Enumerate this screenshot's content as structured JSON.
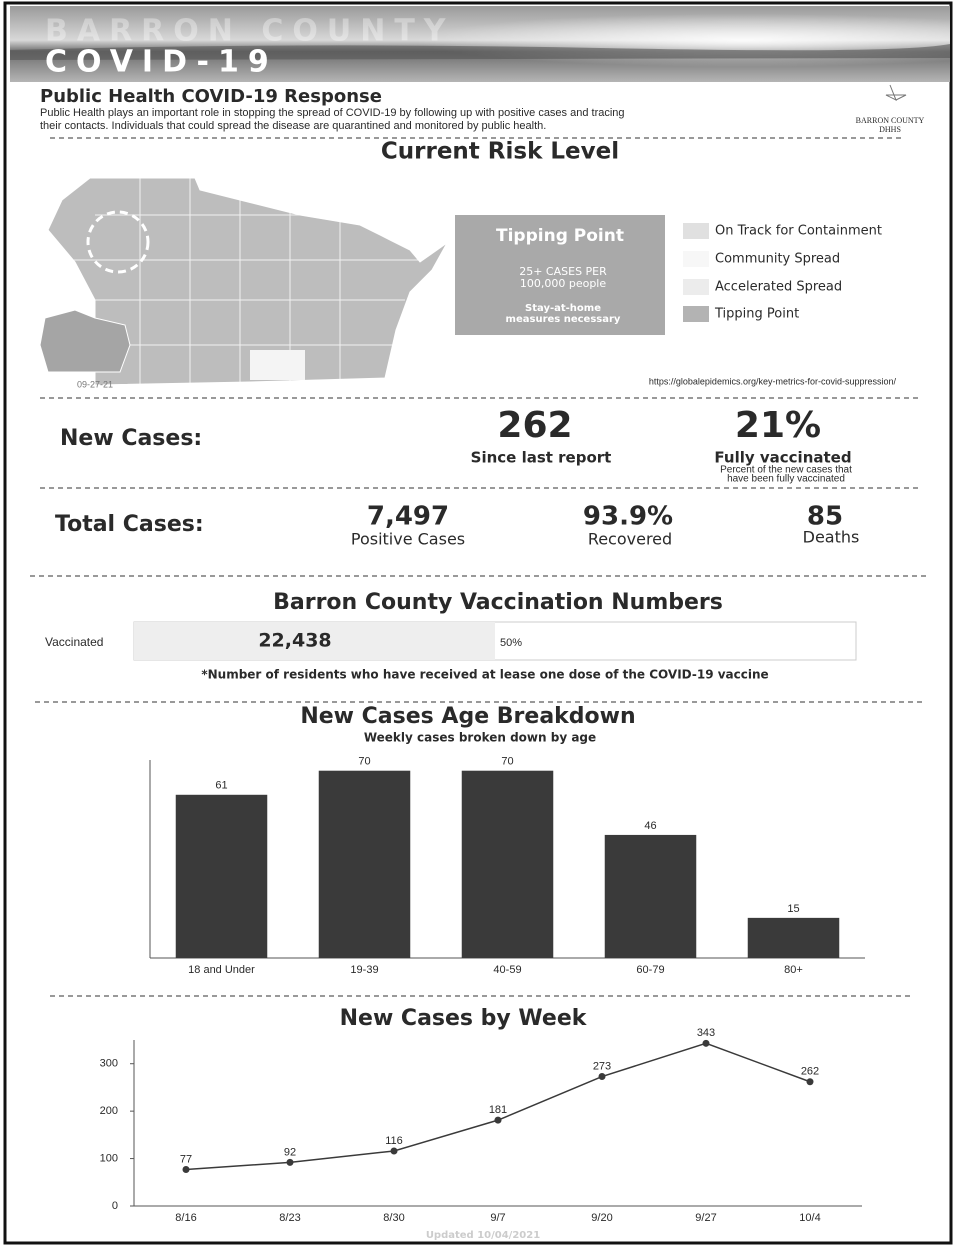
{
  "header": {
    "title_line1": "BARRON COUNTY",
    "title_line2": "COVID-19"
  },
  "intro": {
    "heading": "Public Health COVID-19 Response",
    "text_lines": [
      "Public Health plays an important role in stopping the spread of COVID-19 by following up with positive cases and tracing",
      "their contacts. Individuals that could spread the disease are quarantined and monitored by public health."
    ],
    "logo_line1": "BARRON COUNTY",
    "logo_line2": "DHHS"
  },
  "risk": {
    "title": "Current Risk Level",
    "map_date": "09-27-21",
    "level": "Tipping Point",
    "level_lines": [
      "25+ CASES PER",
      "100,000 people"
    ],
    "action_lines": [
      "Stay-at-home",
      "measures necessary"
    ],
    "legend": [
      "On Track for Containment",
      "Community Spread",
      "Accelerated Spread",
      "Tipping Point"
    ],
    "source": "https://globalepidemics.org/key-metrics-for-covid-suppression/"
  },
  "new_cases": {
    "label": "New Cases:",
    "count": "262",
    "count_label": "Since last report",
    "vaccinated": "21%",
    "vaccinated_label": "Fully vaccinated",
    "note_lines": [
      "Percent  of the new cases that",
      "have been fully vaccinated"
    ]
  },
  "total_cases": {
    "label": "Total Cases:",
    "stats": [
      {
        "value": "7,497",
        "label": "Positive Cases"
      },
      {
        "value": "93.9%",
        "label": "Recovered"
      },
      {
        "value": "85",
        "label": "Deaths"
      }
    ]
  },
  "vaccination": {
    "title": "Barron County Vaccination Numbers",
    "row_label": "Vaccinated",
    "count": "22,438",
    "percent": {
      "value": 50,
      "label": "50%"
    },
    "note": "*Number of residents who have received at lease one dose of the COVID-19 vaccine"
  },
  "chart_data": [
    {
      "type": "bar",
      "title": "New Cases Age Breakdown",
      "subtitle": "Weekly cases broken down by age",
      "categories": [
        "18 and Under",
        "19-39",
        "40-59",
        "60-79",
        "80+"
      ],
      "values": [
        61,
        70,
        70,
        46,
        15
      ],
      "color": "#3a3a3a",
      "ylim": [
        0,
        74
      ]
    },
    {
      "type": "line",
      "title": "New Cases by Week",
      "categories": [
        "8/16",
        "8/23",
        "8/30",
        "9/7",
        "9/20",
        "9/27",
        "10/4"
      ],
      "values": [
        77,
        92,
        116,
        181,
        273,
        343,
        262
      ],
      "color": "#3a3a3a",
      "ylim": [
        0,
        350
      ],
      "yticks": [
        0,
        100,
        200,
        300
      ]
    }
  ],
  "footer": {
    "updated": "Updated 10/04/2021"
  }
}
